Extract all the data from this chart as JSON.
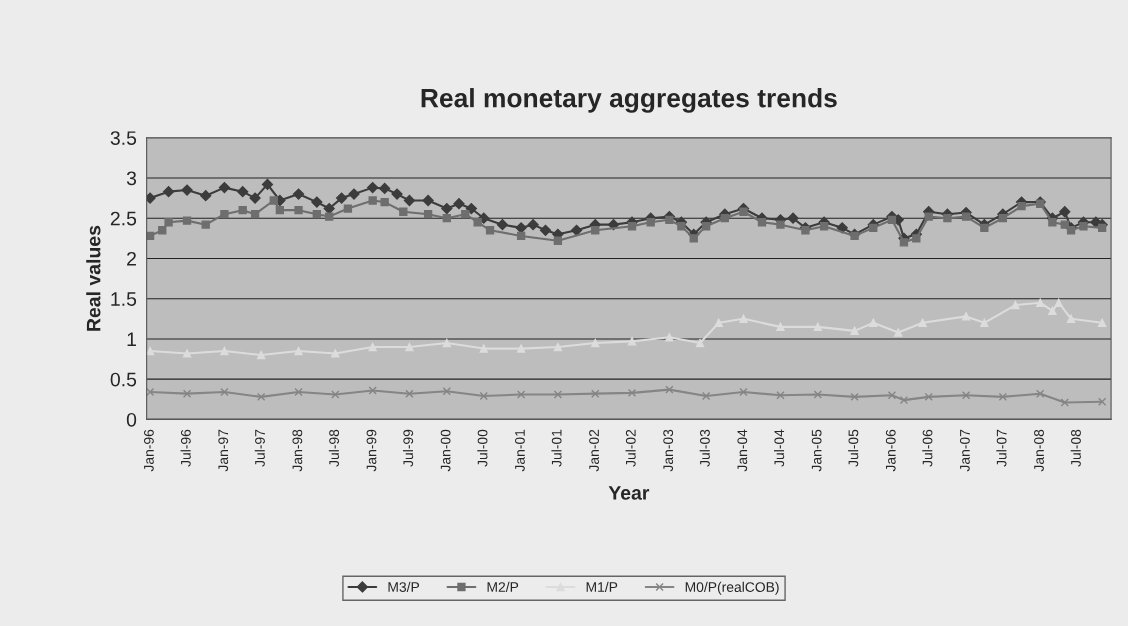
{
  "chart_data": {
    "type": "line",
    "title": "Real monetary aggregates trends",
    "xlabel": "Year",
    "ylabel": "Real values",
    "xlim": [
      "1995-12-15",
      "2008-12-15"
    ],
    "ylim": [
      0,
      3.5
    ],
    "yticks": [
      0,
      0.5,
      1,
      1.5,
      2,
      2.5,
      3,
      3.5
    ],
    "xticks": [
      {
        "value": "1996-01",
        "label": "Jan-96"
      },
      {
        "value": "1996-07",
        "label": "Jul-96"
      },
      {
        "value": "1997-01",
        "label": "Jan-97"
      },
      {
        "value": "1997-07",
        "label": "Jul-97"
      },
      {
        "value": "1998-01",
        "label": "Jan-98"
      },
      {
        "value": "1998-07",
        "label": "Jul-98"
      },
      {
        "value": "1999-01",
        "label": "Jan-99"
      },
      {
        "value": "1999-07",
        "label": "Jul-99"
      },
      {
        "value": "2000-01",
        "label": "Jan-00"
      },
      {
        "value": "2000-07",
        "label": "Jul-00"
      },
      {
        "value": "2001-01",
        "label": "Jan-01"
      },
      {
        "value": "2001-07",
        "label": "Jul-01"
      },
      {
        "value": "2002-01",
        "label": "Jan-02"
      },
      {
        "value": "2002-07",
        "label": "Jul-02"
      },
      {
        "value": "2003-01",
        "label": "Jan-03"
      },
      {
        "value": "2003-07",
        "label": "Jul-03"
      },
      {
        "value": "2004-01",
        "label": "Jan-04"
      },
      {
        "value": "2004-07",
        "label": "Jul-04"
      },
      {
        "value": "2005-01",
        "label": "Jan-05"
      },
      {
        "value": "2005-07",
        "label": "Jul-05"
      },
      {
        "value": "2006-01",
        "label": "Jan-06"
      },
      {
        "value": "2006-07",
        "label": "Jul-06"
      },
      {
        "value": "2007-01",
        "label": "Jan-07"
      },
      {
        "value": "2007-07",
        "label": "Jul-07"
      },
      {
        "value": "2008-01",
        "label": "Jan-08"
      },
      {
        "value": "2008-07",
        "label": "Jul-08"
      }
    ],
    "grid": "y",
    "legend": "bottom",
    "line_style": "solid",
    "series": [
      {
        "name": "M3/P",
        "color": "#3c3c3c",
        "marker": "diamond",
        "x": [
          "1996-01",
          "1996-04",
          "1996-07",
          "1996-10",
          "1997-01",
          "1997-04",
          "1997-06",
          "1997-08",
          "1997-10",
          "1998-01",
          "1998-04",
          "1998-06",
          "1998-08",
          "1998-10",
          "1999-01",
          "1999-03",
          "1999-05",
          "1999-07",
          "1999-10",
          "2000-01",
          "2000-03",
          "2000-05",
          "2000-07",
          "2000-10",
          "2001-01",
          "2001-03",
          "2001-05",
          "2001-07",
          "2001-10",
          "2002-01",
          "2002-04",
          "2002-07",
          "2002-10",
          "2003-01",
          "2003-03",
          "2003-05",
          "2003-07",
          "2003-10",
          "2004-01",
          "2004-04",
          "2004-07",
          "2004-09",
          "2004-11",
          "2005-02",
          "2005-05",
          "2005-07",
          "2005-10",
          "2006-01",
          "2006-02",
          "2006-03",
          "2006-05",
          "2006-07",
          "2006-10",
          "2007-01",
          "2007-04",
          "2007-07",
          "2007-10",
          "2008-01",
          "2008-03",
          "2008-05",
          "2008-06",
          "2008-08",
          "2008-10",
          "2008-11"
        ],
        "values": [
          2.75,
          2.83,
          2.85,
          2.78,
          2.88,
          2.83,
          2.75,
          2.92,
          2.72,
          2.8,
          2.7,
          2.62,
          2.75,
          2.8,
          2.88,
          2.87,
          2.8,
          2.72,
          2.72,
          2.62,
          2.68,
          2.62,
          2.5,
          2.42,
          2.38,
          2.42,
          2.35,
          2.3,
          2.35,
          2.42,
          2.42,
          2.45,
          2.5,
          2.52,
          2.45,
          2.3,
          2.45,
          2.55,
          2.62,
          2.5,
          2.48,
          2.5,
          2.38,
          2.45,
          2.38,
          2.3,
          2.42,
          2.52,
          2.48,
          2.25,
          2.3,
          2.58,
          2.55,
          2.57,
          2.42,
          2.55,
          2.7,
          2.7,
          2.5,
          2.58,
          2.38,
          2.45,
          2.45,
          2.42
        ]
      },
      {
        "name": "M2/P",
        "color": "#6e6e6e",
        "marker": "square",
        "x": [
          "1996-01",
          "1996-03",
          "1996-04",
          "1996-07",
          "1996-10",
          "1997-01",
          "1997-04",
          "1997-06",
          "1997-09",
          "1997-10",
          "1998-01",
          "1998-04",
          "1998-06",
          "1998-09",
          "1999-01",
          "1999-03",
          "1999-06",
          "1999-10",
          "2000-01",
          "2000-04",
          "2000-06",
          "2000-08",
          "2001-01",
          "2001-07",
          "2002-01",
          "2002-07",
          "2002-10",
          "2003-01",
          "2003-03",
          "2003-05",
          "2003-07",
          "2003-10",
          "2004-01",
          "2004-04",
          "2004-07",
          "2004-11",
          "2005-02",
          "2005-07",
          "2005-10",
          "2006-01",
          "2006-03",
          "2006-05",
          "2006-07",
          "2006-10",
          "2007-01",
          "2007-04",
          "2007-07",
          "2007-10",
          "2008-01",
          "2008-03",
          "2008-05",
          "2008-06",
          "2008-08",
          "2008-11"
        ],
        "values": [
          2.28,
          2.35,
          2.45,
          2.47,
          2.42,
          2.55,
          2.6,
          2.55,
          2.72,
          2.6,
          2.6,
          2.55,
          2.52,
          2.62,
          2.72,
          2.7,
          2.58,
          2.55,
          2.5,
          2.55,
          2.45,
          2.35,
          2.28,
          2.22,
          2.35,
          2.4,
          2.45,
          2.48,
          2.4,
          2.25,
          2.4,
          2.5,
          2.58,
          2.45,
          2.42,
          2.35,
          2.4,
          2.28,
          2.38,
          2.48,
          2.2,
          2.25,
          2.52,
          2.5,
          2.52,
          2.38,
          2.5,
          2.65,
          2.68,
          2.45,
          2.42,
          2.35,
          2.4,
          2.38
        ]
      },
      {
        "name": "M1/P",
        "color": "#dcdcdc",
        "marker": "triangle",
        "x": [
          "1996-01",
          "1996-07",
          "1997-01",
          "1997-07",
          "1998-01",
          "1998-07",
          "1999-01",
          "1999-07",
          "2000-01",
          "2000-07",
          "2001-01",
          "2001-07",
          "2002-01",
          "2002-07",
          "2003-01",
          "2003-06",
          "2003-09",
          "2004-01",
          "2004-07",
          "2005-01",
          "2005-07",
          "2005-10",
          "2006-02",
          "2006-06",
          "2007-01",
          "2007-04",
          "2007-09",
          "2008-01",
          "2008-03",
          "2008-04",
          "2008-06",
          "2008-11"
        ],
        "values": [
          0.85,
          0.82,
          0.85,
          0.8,
          0.85,
          0.82,
          0.9,
          0.9,
          0.95,
          0.88,
          0.88,
          0.9,
          0.95,
          0.97,
          1.02,
          0.95,
          1.2,
          1.25,
          1.15,
          1.15,
          1.1,
          1.2,
          1.08,
          1.2,
          1.28,
          1.2,
          1.42,
          1.45,
          1.35,
          1.45,
          1.25,
          1.2
        ]
      },
      {
        "name": "M0/P(realCOB)",
        "color": "#858585",
        "marker": "cross",
        "x": [
          "1996-01",
          "1996-07",
          "1997-01",
          "1997-07",
          "1998-01",
          "1998-07",
          "1999-01",
          "1999-07",
          "2000-01",
          "2000-07",
          "2001-01",
          "2001-07",
          "2002-01",
          "2002-07",
          "2003-01",
          "2003-07",
          "2004-01",
          "2004-07",
          "2005-01",
          "2005-07",
          "2006-01",
          "2006-03",
          "2006-07",
          "2007-01",
          "2007-07",
          "2008-01",
          "2008-05",
          "2008-11"
        ],
        "values": [
          0.34,
          0.32,
          0.34,
          0.28,
          0.34,
          0.31,
          0.36,
          0.32,
          0.35,
          0.29,
          0.31,
          0.31,
          0.32,
          0.33,
          0.37,
          0.29,
          0.34,
          0.3,
          0.31,
          0.28,
          0.3,
          0.24,
          0.28,
          0.3,
          0.28,
          0.32,
          0.21,
          0.22
        ]
      }
    ]
  }
}
